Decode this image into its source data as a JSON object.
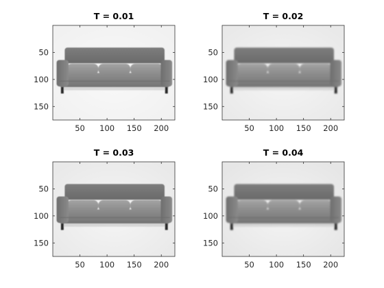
{
  "chart_data": {
    "type": "image-grid",
    "panels": [
      {
        "title": "T = 0.01",
        "xticks": [
          50,
          100,
          150,
          200
        ],
        "yticks": [
          50,
          100,
          150
        ],
        "xlim": [
          0,
          225
        ],
        "ylim": [
          0,
          175
        ],
        "background": "#f1f1f1"
      },
      {
        "title": "T = 0.02",
        "xticks": [
          50,
          100,
          150,
          200
        ],
        "yticks": [
          50,
          100,
          150
        ],
        "xlim": [
          0,
          225
        ],
        "ylim": [
          0,
          175
        ],
        "background": "#e9e9e9"
      },
      {
        "title": "T = 0.03",
        "xticks": [
          50,
          100,
          150,
          200
        ],
        "yticks": [
          50,
          100,
          150
        ],
        "xlim": [
          0,
          225
        ],
        "ylim": [
          0,
          175
        ],
        "background": "#e9e9e9"
      },
      {
        "title": "T = 0.04",
        "xticks": [
          50,
          100,
          150,
          200
        ],
        "yticks": [
          50,
          100,
          150
        ],
        "xlim": [
          0,
          225
        ],
        "ylim": [
          0,
          175
        ],
        "background": "#e6e6e6"
      }
    ],
    "image_subject": "sofa",
    "colormap": "gray",
    "y_axis_direction": "reversed"
  }
}
